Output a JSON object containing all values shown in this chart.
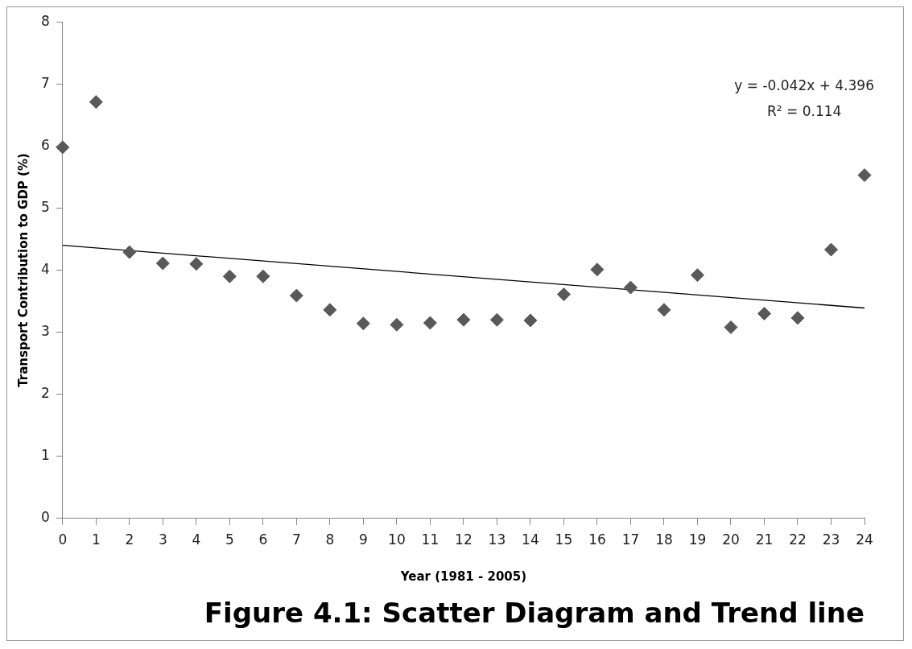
{
  "chart_data": {
    "type": "scatter",
    "title": "Figure 4.1: Scatter Diagram and Trend line",
    "xlabel": "Year (1981 - 2005)",
    "ylabel": "Transport Contribution to GDP (%)",
    "x": [
      0,
      1,
      2,
      3,
      4,
      5,
      6,
      7,
      8,
      9,
      10,
      11,
      12,
      13,
      14,
      15,
      16,
      17,
      18,
      19,
      20,
      21,
      22,
      23,
      24
    ],
    "series": [
      {
        "color": "#595959",
        "marker": "diamond",
        "values": [
          5.98,
          6.71,
          4.29,
          4.11,
          4.1,
          3.9,
          3.9,
          3.59,
          3.36,
          3.14,
          3.12,
          3.15,
          3.2,
          3.2,
          3.19,
          3.61,
          4.01,
          3.72,
          3.36,
          3.92,
          3.08,
          3.3,
          3.23,
          4.33,
          5.53
        ]
      },
      {
        "type": "line",
        "color": "#000000",
        "marker": "none",
        "line_style": "solid",
        "x": [
          0,
          24
        ],
        "values": [
          4.4,
          3.39
        ]
      }
    ],
    "annotations": [
      "y = -0.042x + 4.396",
      "R² = 0.114"
    ],
    "xlim": [
      0,
      24
    ],
    "xticks": [
      0,
      1,
      2,
      3,
      4,
      5,
      6,
      7,
      8,
      9,
      10,
      11,
      12,
      13,
      14,
      15,
      16,
      17,
      18,
      19,
      20,
      21,
      22,
      23,
      24
    ],
    "ylim": [
      0,
      8
    ],
    "yticks": [
      0,
      1,
      2,
      3,
      4,
      5,
      6,
      7,
      8
    ],
    "grid": false,
    "legend": false
  }
}
